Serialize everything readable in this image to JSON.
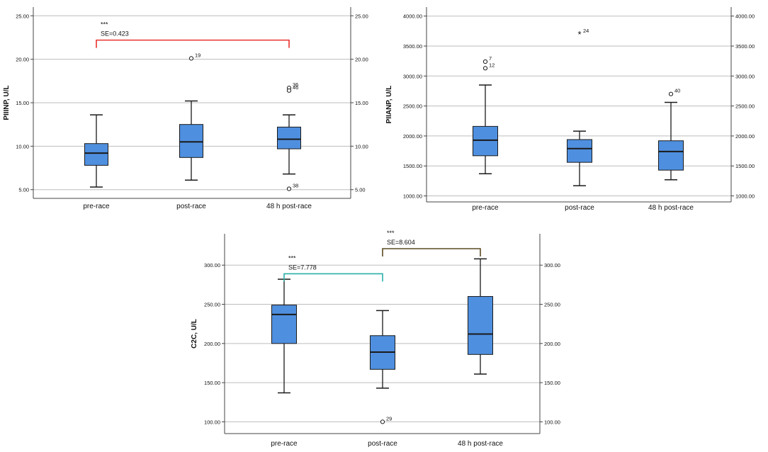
{
  "chart_data": [
    {
      "type": "boxplot",
      "ylabel": "PIIINP, U/L",
      "ylim": [
        4,
        26
      ],
      "yticks": [
        5,
        10,
        15,
        20,
        25
      ],
      "ytick_labels": [
        "5.00",
        "10.00",
        "15.00",
        "20.00",
        "25.00"
      ],
      "right_axis": true,
      "grid": true,
      "categories": [
        "pre-race",
        "post-race",
        "48 h post-race"
      ],
      "boxes": [
        {
          "whisker_low": 5.3,
          "q1": 7.8,
          "median": 9.2,
          "q3": 10.3,
          "whisker_high": 13.6,
          "outliers": []
        },
        {
          "whisker_low": 6.1,
          "q1": 8.7,
          "median": 10.5,
          "q3": 12.5,
          "whisker_high": 15.2,
          "outliers": [
            {
              "value": 20.1,
              "label": "19",
              "marker": "circle"
            }
          ]
        },
        {
          "whisker_low": 6.8,
          "q1": 9.7,
          "median": 10.8,
          "q3": 12.2,
          "whisker_high": 13.6,
          "outliers": [
            {
              "value": 16.7,
              "label": "36",
              "marker": "circle"
            },
            {
              "value": 16.4,
              "label": "46",
              "marker": "circle"
            },
            {
              "value": 5.1,
              "label": "38",
              "marker": "circle"
            }
          ]
        }
      ],
      "brackets": [
        {
          "from": 0,
          "to": 2,
          "y": 22.2,
          "stars": "***",
          "text": "SE=0.423",
          "color": "#e8322c"
        }
      ]
    },
    {
      "type": "boxplot",
      "ylabel": "PIIANP, U/L",
      "ylim": [
        900,
        4150
      ],
      "yticks": [
        1000,
        1500,
        2000,
        2500,
        3000,
        3500,
        4000
      ],
      "ytick_labels": [
        "1000.00",
        "1500.00",
        "2000.00",
        "2500.00",
        "3000.00",
        "3500.00",
        "4000.00"
      ],
      "right_axis": true,
      "grid": true,
      "categories": [
        "pre-race",
        "post-race",
        "48 h post-race"
      ],
      "boxes": [
        {
          "whisker_low": 1370,
          "q1": 1670,
          "median": 1930,
          "q3": 2160,
          "whisker_high": 2850,
          "outliers": [
            {
              "value": 3240,
              "label": "7",
              "marker": "circle"
            },
            {
              "value": 3130,
              "label": "12",
              "marker": "circle"
            }
          ]
        },
        {
          "whisker_low": 1170,
          "q1": 1560,
          "median": 1790,
          "q3": 1940,
          "whisker_high": 2080,
          "outliers": [
            {
              "value": 3700,
              "label": "24",
              "marker": "star"
            }
          ]
        },
        {
          "whisker_low": 1270,
          "q1": 1430,
          "median": 1740,
          "q3": 1920,
          "whisker_high": 2560,
          "outliers": [
            {
              "value": 2700,
              "label": "40",
              "marker": "circle"
            }
          ]
        }
      ],
      "brackets": []
    },
    {
      "type": "boxplot",
      "ylabel": "C2C, U/L",
      "ylim": [
        85,
        340
      ],
      "yticks": [
        100,
        150,
        200,
        250,
        300
      ],
      "ytick_labels": [
        "100.00",
        "150.00",
        "200.00",
        "250.00",
        "300.00"
      ],
      "right_axis": true,
      "grid": true,
      "categories": [
        "pre-race",
        "post-race",
        "48 h post-race"
      ],
      "boxes": [
        {
          "whisker_low": 137,
          "q1": 200,
          "median": 237,
          "q3": 249,
          "whisker_high": 282,
          "outliers": []
        },
        {
          "whisker_low": 143,
          "q1": 167,
          "median": 189,
          "q3": 210,
          "whisker_high": 242,
          "outliers": [
            {
              "value": 100,
              "label": "29",
              "marker": "circle"
            }
          ]
        },
        {
          "whisker_low": 161,
          "q1": 186,
          "median": 212,
          "q3": 260,
          "whisker_high": 308,
          "outliers": []
        }
      ],
      "brackets": [
        {
          "from": 0,
          "to": 1,
          "y": 289,
          "stars": "***",
          "text": "SE=7.778",
          "color": "#2ab0a8"
        },
        {
          "from": 1,
          "to": 2,
          "y": 321,
          "stars": "***",
          "text": "SE=8.604",
          "color": "#5c4a22"
        }
      ]
    }
  ],
  "colors": {
    "box_fill": "#4f8fdf",
    "box_stroke": "#1a1a1a",
    "grid": "#bdbdbd",
    "axis": "#444444"
  }
}
